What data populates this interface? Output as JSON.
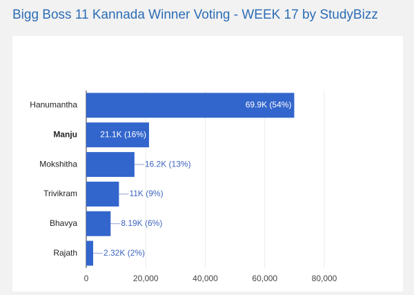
{
  "chart_data": {
    "type": "bar",
    "orientation": "horizontal",
    "title": "Bigg Boss 11 Kannada Winner Voting - WEEK 17 by StudyBizz",
    "categories": [
      "Hanumantha",
      "Manju",
      "Mokshitha",
      "Trivikram",
      "Bhavya",
      "Rajath"
    ],
    "values": [
      69900,
      21100,
      16200,
      11000,
      8190,
      2320
    ],
    "value_labels": [
      "69.9K (54%)",
      "21.1K (16%)",
      "16.2K (13%)",
      "11K (9%)",
      "8.19K (6%)",
      "2.32K (2%)"
    ],
    "highlight_index": 1,
    "color": "#3366cc",
    "xlim": [
      0,
      80000
    ],
    "xticks": [
      0,
      {
        "value": 20000,
        "label": "20,000"
      },
      {
        "value": 40000,
        "label": "40,000"
      },
      {
        "value": 60000,
        "label": "60,000"
      },
      {
        "value": 80000,
        "label": "80,000"
      }
    ],
    "grid": true
  }
}
